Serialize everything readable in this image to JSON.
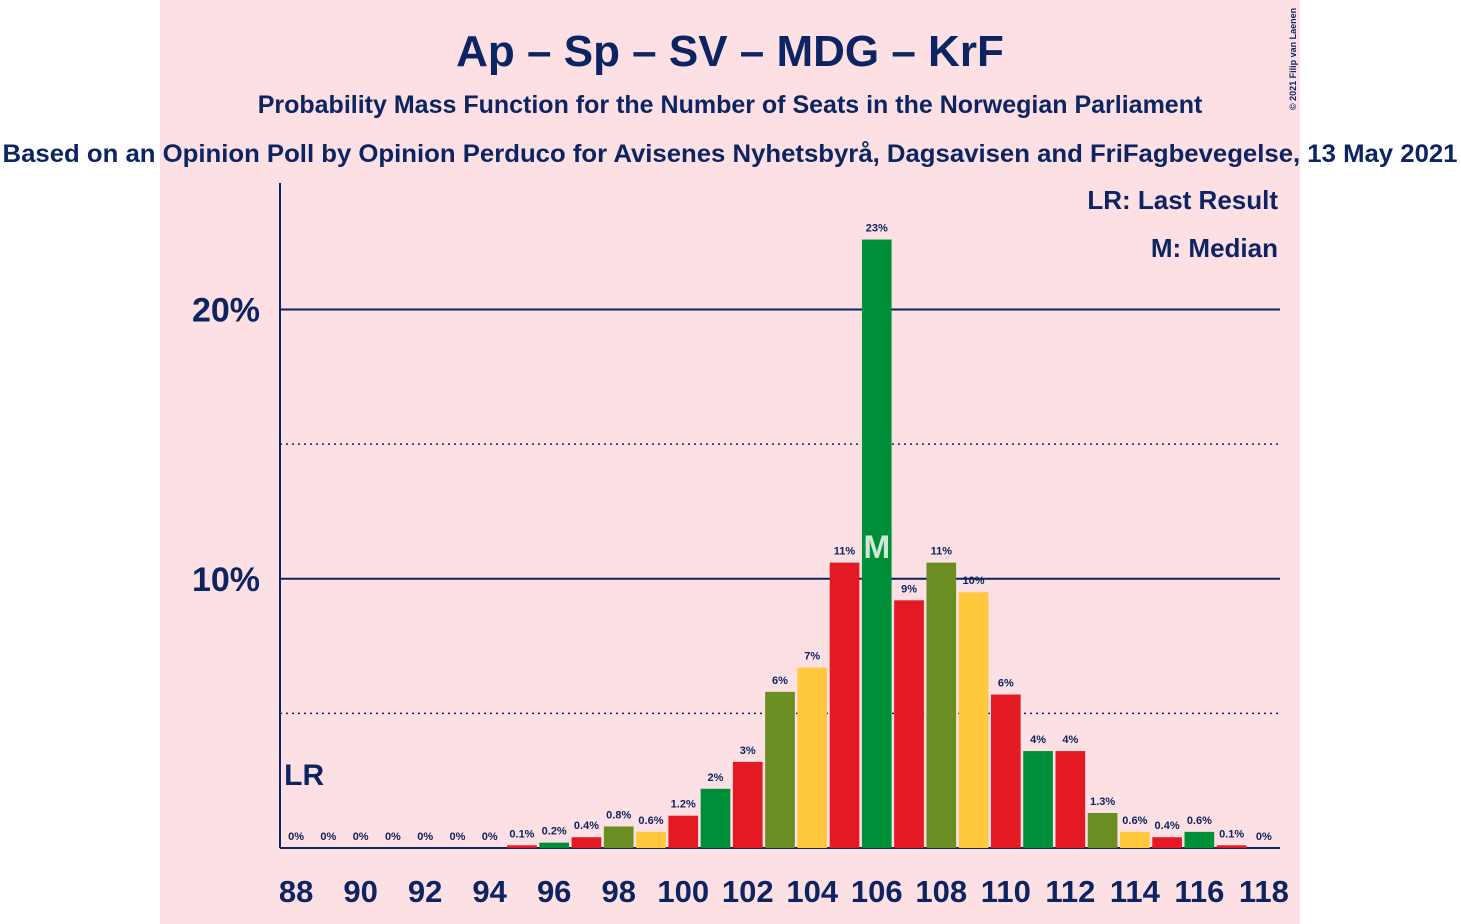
{
  "chart_data": {
    "type": "bar",
    "title": "Ap – Sp – SV – MDG – KrF",
    "subtitle": "Probability Mass Function for the Number of Seats in the Norwegian Parliament",
    "source": "Based on an Opinion Poll by Opinion Perduco for Avisenes Nyhetsbyrå, Dagsavisen and FriFagbevegelse, 13 May 2021",
    "copyright": "© 2021 Filip van Laenen",
    "categories": [
      88,
      null,
      90,
      null,
      92,
      null,
      94,
      null,
      96,
      null,
      98,
      null,
      100,
      null,
      102,
      null,
      104,
      null,
      106,
      null,
      108,
      null,
      110,
      null,
      112,
      null,
      114,
      null,
      116,
      null,
      118
    ],
    "values": [
      0,
      0,
      0,
      0,
      0,
      0,
      0,
      0.1,
      0.2,
      0.4,
      0.8,
      0.6,
      1.2,
      2.2,
      3.2,
      5.8,
      6.7,
      10.6,
      22.6,
      9.2,
      10.6,
      9.5,
      5.7,
      3.6,
      3.6,
      1.3,
      0.6,
      0.4,
      0.6,
      0.1,
      0
    ],
    "value_labels": [
      "0%",
      "0%",
      "0%",
      "0%",
      "0%",
      "0%",
      "0%",
      "0.1%",
      "0.2%",
      "0.4%",
      "0.8%",
      "0.6%",
      "1.2%",
      "2%",
      "3%",
      "6%",
      "7%",
      "11%",
      "23%",
      "9%",
      "11%",
      "10%",
      "6%",
      "4%",
      "4%",
      "1.3%",
      "0.6%",
      "0.4%",
      "0.6%",
      "0.1%",
      "0%"
    ],
    "colors": [
      "#e31a24",
      "#008f39",
      "#e31a24",
      "#6b8e23",
      "#ffc83d",
      "#e31a24",
      "#008f39",
      "#e31a24",
      "#008f39",
      "#e31a24",
      "#6b8e23",
      "#ffc83d",
      "#e31a24",
      "#008f39",
      "#e31a24",
      "#6b8e23",
      "#ffc83d",
      "#e31a24",
      "#008f39",
      "#e31a24",
      "#6b8e23",
      "#ffc83d",
      "#e31a24",
      "#008f39",
      "#e31a24",
      "#6b8e23",
      "#ffc83d",
      "#e31a24",
      "#008f39",
      "#e31a24",
      "#6b8e23"
    ],
    "ylim": [
      0,
      24.7
    ],
    "yticks": [
      {
        "value": 10,
        "label": "10%"
      },
      {
        "value": 20,
        "label": "20%"
      }
    ],
    "minor_yticks": [
      5,
      15
    ],
    "grid": true,
    "last_result": {
      "seats": 88,
      "label": "LR"
    },
    "median": {
      "seats": 106,
      "label": "M"
    },
    "legend": [
      "LR: Last Result",
      "M: Median"
    ]
  }
}
